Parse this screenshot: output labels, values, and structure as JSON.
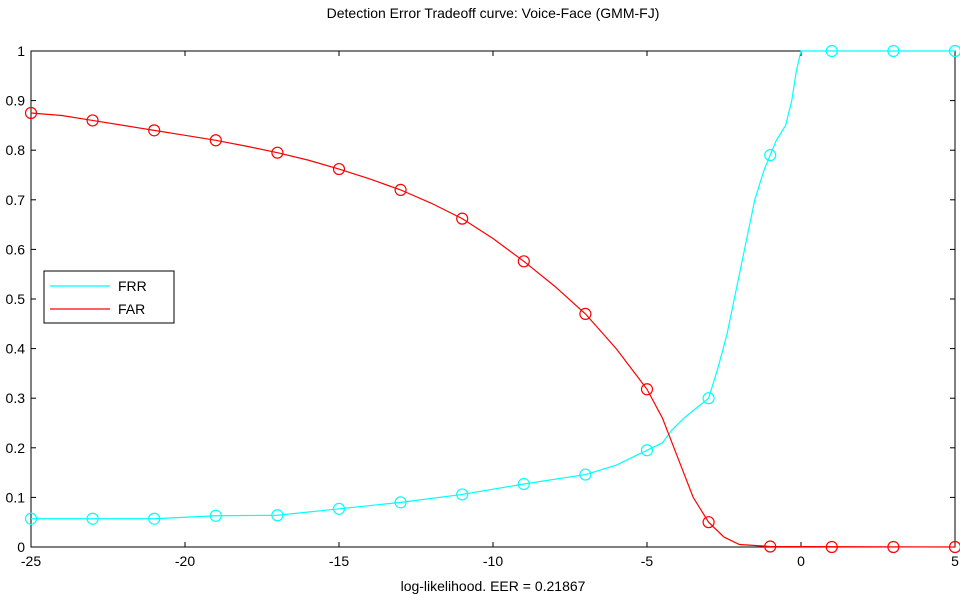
{
  "chart_data": {
    "type": "line",
    "title": "Detection Error Tradeoff curve: Voice-Face (GMM-FJ)",
    "xlabel": "log-likelihood. EER = 0.21867",
    "ylabel": "",
    "xlim": [
      -25,
      5
    ],
    "ylim": [
      0,
      1
    ],
    "xticks": [
      -25,
      -20,
      -15,
      -10,
      -5,
      0,
      5
    ],
    "yticks": [
      0,
      0.1,
      0.2,
      0.3,
      0.4,
      0.5,
      0.6,
      0.7,
      0.8,
      0.9,
      1
    ],
    "grid": false,
    "legend_position": "left",
    "series": [
      {
        "name": "FRR",
        "color": "#00ffff",
        "marker": "circle",
        "curve": [
          [
            -25,
            0.057
          ],
          [
            -21,
            0.057
          ],
          [
            -19,
            0.063
          ],
          [
            -17,
            0.064
          ],
          [
            -15,
            0.077
          ],
          [
            -13,
            0.09
          ],
          [
            -11,
            0.106
          ],
          [
            -9,
            0.127
          ],
          [
            -7,
            0.146
          ],
          [
            -6,
            0.165
          ],
          [
            -5,
            0.195
          ],
          [
            -4.5,
            0.21
          ],
          [
            -4.2,
            0.235
          ],
          [
            -3.8,
            0.26
          ],
          [
            -3.4,
            0.28
          ],
          [
            -3,
            0.3
          ],
          [
            -2.7,
            0.36
          ],
          [
            -2.4,
            0.43
          ],
          [
            -2.1,
            0.52
          ],
          [
            -1.8,
            0.61
          ],
          [
            -1.5,
            0.7
          ],
          [
            -1.2,
            0.76
          ],
          [
            -1,
            0.79
          ],
          [
            -0.8,
            0.82
          ],
          [
            -0.5,
            0.85
          ],
          [
            -0.3,
            0.9
          ],
          [
            -0.15,
            0.96
          ],
          [
            0,
            1
          ],
          [
            5,
            1
          ]
        ],
        "markers": [
          [
            -25,
            0.057
          ],
          [
            -23,
            0.057
          ],
          [
            -21,
            0.057
          ],
          [
            -19,
            0.063
          ],
          [
            -17,
            0.064
          ],
          [
            -15,
            0.077
          ],
          [
            -13,
            0.09
          ],
          [
            -11,
            0.106
          ],
          [
            -9,
            0.127
          ],
          [
            -7,
            0.146
          ],
          [
            -5,
            0.195
          ],
          [
            -3,
            0.3
          ],
          [
            -1,
            0.79
          ],
          [
            1,
            1
          ],
          [
            3,
            1
          ],
          [
            5,
            1
          ]
        ]
      },
      {
        "name": "FAR",
        "color": "#ff0000",
        "marker": "circle",
        "curve": [
          [
            -25,
            0.875
          ],
          [
            -24,
            0.87
          ],
          [
            -23,
            0.86
          ],
          [
            -22,
            0.85
          ],
          [
            -21,
            0.84
          ],
          [
            -20,
            0.83
          ],
          [
            -19,
            0.82
          ],
          [
            -18,
            0.808
          ],
          [
            -17,
            0.795
          ],
          [
            -16,
            0.78
          ],
          [
            -15,
            0.762
          ],
          [
            -14,
            0.742
          ],
          [
            -13,
            0.72
          ],
          [
            -12,
            0.693
          ],
          [
            -11,
            0.662
          ],
          [
            -10,
            0.622
          ],
          [
            -9,
            0.576
          ],
          [
            -8,
            0.526
          ],
          [
            -7,
            0.47
          ],
          [
            -6,
            0.4
          ],
          [
            -5,
            0.318
          ],
          [
            -4.5,
            0.26
          ],
          [
            -4,
            0.18
          ],
          [
            -3.5,
            0.1
          ],
          [
            -3,
            0.05
          ],
          [
            -2.5,
            0.02
          ],
          [
            -2,
            0.005
          ],
          [
            -1,
            0.001
          ],
          [
            5,
            0
          ]
        ],
        "markers": [
          [
            -25,
            0.875
          ],
          [
            -23,
            0.86
          ],
          [
            -21,
            0.84
          ],
          [
            -19,
            0.82
          ],
          [
            -17,
            0.795
          ],
          [
            -15,
            0.762
          ],
          [
            -13,
            0.72
          ],
          [
            -11,
            0.662
          ],
          [
            -9,
            0.576
          ],
          [
            -7,
            0.47
          ],
          [
            -5,
            0.318
          ],
          [
            -3,
            0.05
          ],
          [
            -1,
            0.001
          ],
          [
            1,
            0
          ],
          [
            3,
            0
          ],
          [
            5,
            0
          ]
        ]
      }
    ]
  }
}
